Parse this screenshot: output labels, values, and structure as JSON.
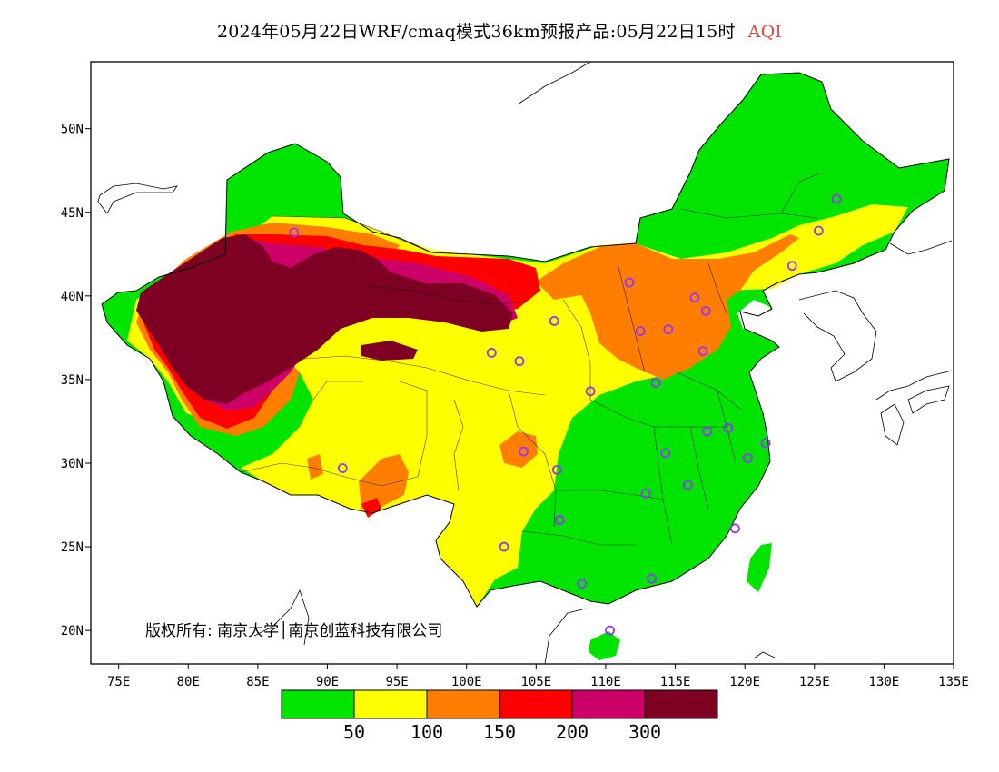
{
  "title": {
    "main": "2024年05月22日WRF/cmaq模式36km预报产品:05月22日15时",
    "variable": "AQI"
  },
  "copyright": "版权所有: 南京大学│南京创蓝科技有限公司",
  "axes": {
    "x_ticks": [
      "75E",
      "80E",
      "85E",
      "90E",
      "95E",
      "100E",
      "105E",
      "110E",
      "115E",
      "120E",
      "125E",
      "130E",
      "135E"
    ],
    "y_ticks": [
      "50N",
      "45N",
      "40N",
      "35N",
      "30N",
      "25N",
      "20N"
    ],
    "lon_range": [
      73,
      135
    ],
    "lat_range": [
      18,
      54
    ]
  },
  "legend": {
    "colors": [
      "#00e400",
      "#ffff00",
      "#ff7e00",
      "#ff0000",
      "#cc0066",
      "#7e0023"
    ],
    "labels": [
      "50",
      "100",
      "150",
      "200",
      "300"
    ]
  },
  "palette": {
    "good": "#00e400",
    "moderate": "#ffff00",
    "usg": "#ff7e00",
    "unhealthy": "#ff0000",
    "very_unhealthy": "#cc0066",
    "hazardous": "#7e0023",
    "station_marker": "#9933ff"
  },
  "stations": [
    {
      "lon": 87.6,
      "lat": 43.8
    },
    {
      "lon": 126.6,
      "lat": 45.8
    },
    {
      "lon": 125.3,
      "lat": 43.9
    },
    {
      "lon": 123.4,
      "lat": 41.8
    },
    {
      "lon": 111.7,
      "lat": 40.8
    },
    {
      "lon": 116.4,
      "lat": 39.9
    },
    {
      "lon": 117.2,
      "lat": 39.1
    },
    {
      "lon": 106.3,
      "lat": 38.5
    },
    {
      "lon": 112.5,
      "lat": 37.9
    },
    {
      "lon": 114.5,
      "lat": 38.0
    },
    {
      "lon": 101.8,
      "lat": 36.6
    },
    {
      "lon": 103.8,
      "lat": 36.1
    },
    {
      "lon": 117.0,
      "lat": 36.7
    },
    {
      "lon": 113.6,
      "lat": 34.8
    },
    {
      "lon": 108.9,
      "lat": 34.3
    },
    {
      "lon": 118.8,
      "lat": 32.1
    },
    {
      "lon": 117.3,
      "lat": 31.9
    },
    {
      "lon": 121.5,
      "lat": 31.2
    },
    {
      "lon": 114.3,
      "lat": 30.6
    },
    {
      "lon": 120.2,
      "lat": 30.3
    },
    {
      "lon": 104.1,
      "lat": 30.7
    },
    {
      "lon": 106.5,
      "lat": 29.6
    },
    {
      "lon": 91.1,
      "lat": 29.7
    },
    {
      "lon": 112.9,
      "lat": 28.2
    },
    {
      "lon": 115.9,
      "lat": 28.7
    },
    {
      "lon": 106.7,
      "lat": 26.6
    },
    {
      "lon": 119.3,
      "lat": 26.1
    },
    {
      "lon": 102.7,
      "lat": 25.0
    },
    {
      "lon": 113.3,
      "lat": 23.1
    },
    {
      "lon": 108.3,
      "lat": 22.8
    },
    {
      "lon": 110.3,
      "lat": 20.0
    }
  ]
}
